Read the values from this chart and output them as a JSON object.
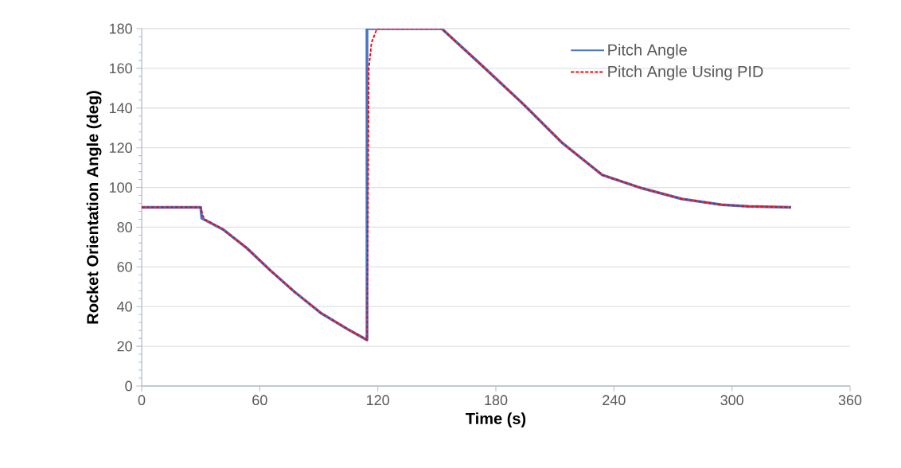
{
  "chart_data": {
    "type": "line",
    "xlabel": "Time (s)",
    "ylabel": "Rocket Orientation Angle (deg)",
    "xlim": [
      0,
      360
    ],
    "xticks": [
      0,
      60,
      120,
      180,
      240,
      300,
      360
    ],
    "ylim": [
      0,
      180
    ],
    "yticks": [
      0,
      20,
      40,
      60,
      80,
      100,
      120,
      140,
      160,
      180
    ],
    "grid": "y",
    "legend": "top right",
    "marker": "none",
    "series": [
      {
        "name": "Pitch Angle",
        "color": "#4a72c4",
        "line_style": "solid",
        "x": [
          0,
          30,
          30.5,
          31.1,
          41.3,
          53.4,
          65.5,
          77.7,
          91.0,
          104.6,
          114.5,
          114.5,
          152.5,
          173.4,
          193.6,
          213.9,
          234.1,
          254.3,
          274.6,
          294.8,
          308.3,
          330
        ],
        "values": [
          90,
          90,
          84.5,
          84.2,
          78.9,
          69.5,
          58.1,
          47.4,
          36.8,
          28.7,
          23.2,
          180,
          180,
          161,
          142.3,
          122.3,
          106.3,
          99.6,
          94.2,
          91.3,
          90.5,
          90
        ]
      },
      {
        "name": "Pitch Angle Using PID",
        "color": "#ff0000",
        "line_style": "dashed",
        "x": [
          0,
          30,
          31,
          32,
          41.3,
          53.4,
          65.5,
          77.7,
          91.0,
          104.6,
          114.6,
          115.4,
          116.8,
          119.5,
          120.8,
          152.5,
          173.4,
          193.6,
          213.9,
          234.1,
          254.3,
          274.6,
          294.8,
          308.3,
          330
        ],
        "values": [
          90,
          90,
          86,
          84,
          78.9,
          69.5,
          58.1,
          47.4,
          36.8,
          28.7,
          23.2,
          159.7,
          173,
          179.8,
          180,
          180,
          161,
          142.3,
          122.3,
          106.3,
          99.6,
          94.2,
          91.3,
          90.5,
          90
        ]
      }
    ]
  }
}
